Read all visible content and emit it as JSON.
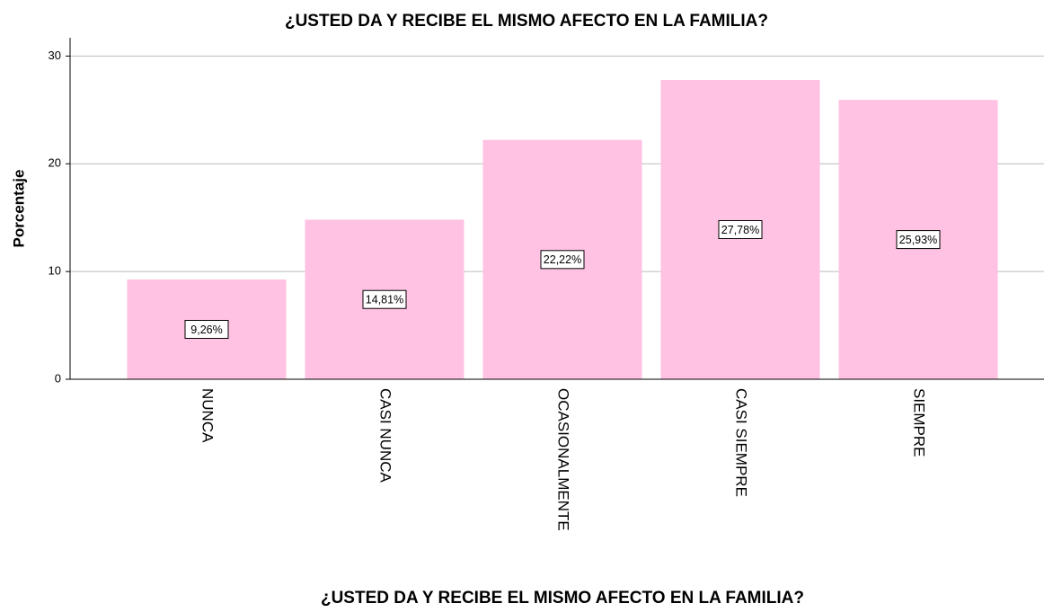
{
  "chart_data": {
    "type": "bar",
    "title": "¿USTED DA Y RECIBE EL MISMO AFECTO EN LA FAMILIA?",
    "x_label": "¿USTED DA Y RECIBE EL MISMO AFECTO EN LA FAMILIA?",
    "y_label": "Porcentaje",
    "categories": [
      "NUNCA",
      "CASI NUNCA",
      "OCASIONALMENTE",
      "CASI SIEMPRE",
      "SIEMPRE"
    ],
    "values": [
      9.26,
      14.81,
      22.22,
      27.78,
      25.93
    ],
    "value_labels": [
      "9,26%",
      "14,81%",
      "22,22%",
      "27,78%",
      "25,93%"
    ],
    "color": "#ffc2e2",
    "ylim": [
      0,
      31.7
    ],
    "yticks": [
      0,
      10,
      20,
      30
    ],
    "grid": true
  }
}
